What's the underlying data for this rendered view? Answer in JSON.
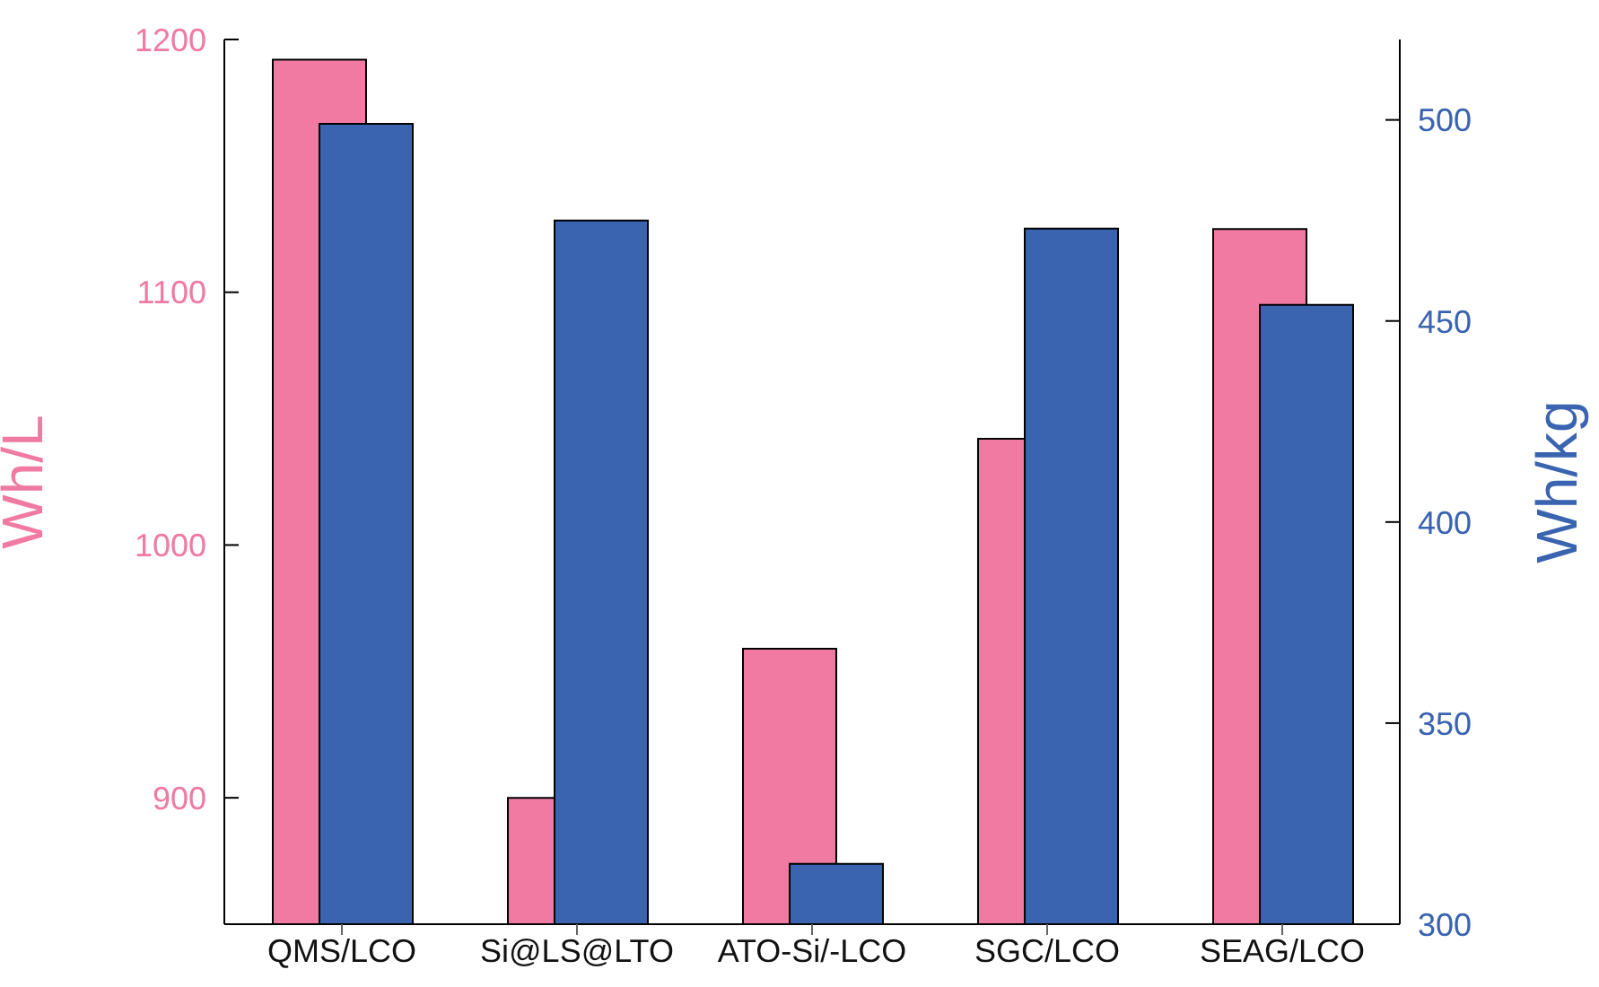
{
  "chart_data": {
    "type": "bar",
    "categories": [
      "QMS/LCO",
      "Si@LS@LTO",
      "ATO-Si/-LCO",
      "SGC/LCO",
      "SEAG/LCO"
    ],
    "ylabel": "Wh/L",
    "y2label": "Wh/kg",
    "series": [
      {
        "color": "#f07aa2",
        "values": [
          1192,
          900,
          959,
          1042,
          1125
        ]
      },
      {
        "color": "#3a63b0",
        "axis": "y2",
        "values": [
          499,
          475,
          315,
          473,
          454
        ]
      }
    ],
    "ylim": [
      850,
      1200
    ],
    "yticks": [
      900,
      1000,
      1100,
      1200
    ],
    "y2lim": [
      300,
      520
    ],
    "y2ticks": [
      300,
      350,
      400,
      450,
      500
    ]
  }
}
